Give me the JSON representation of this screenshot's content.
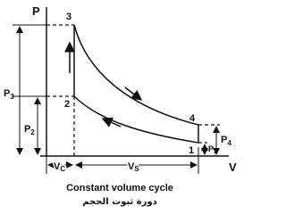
{
  "axes": {
    "y_label": "P",
    "x_label": "V"
  },
  "points": [
    "3",
    "2",
    "4",
    "1"
  ],
  "pressures": [
    {
      "base": "P",
      "sub": "3"
    },
    {
      "base": "P",
      "sub": "2"
    },
    {
      "base": "P",
      "sub": "4"
    },
    {
      "base": "P",
      "sub": "1"
    }
  ],
  "volumes": [
    {
      "base": "V",
      "sub": "C"
    },
    {
      "base": "V",
      "sub": "S"
    }
  ],
  "caption": {
    "title": "Constant volume cycle",
    "arabic": "دورة ثبوت الحجم"
  }
}
